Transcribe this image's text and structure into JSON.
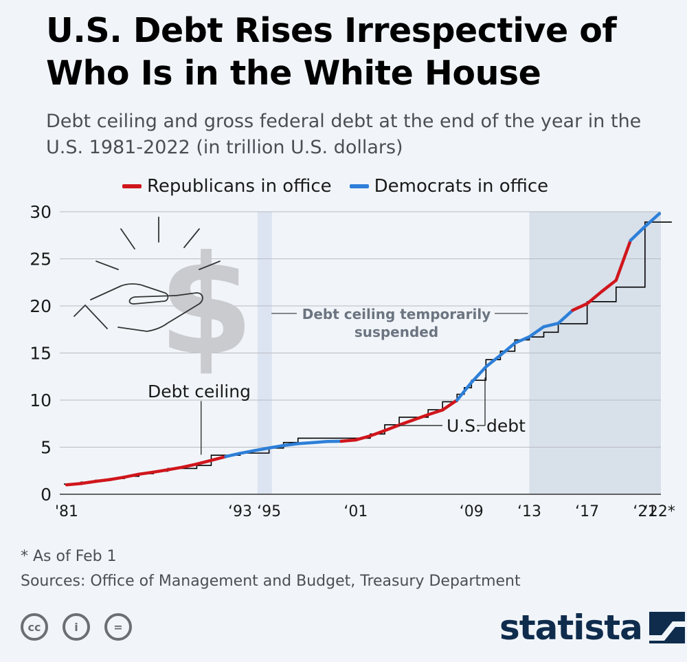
{
  "header": {
    "title": "U.S. Debt Rises Irrespective of Who Is in the White House",
    "subtitle": "Debt ceiling and gross federal debt at the end of the year in the U.S. 1981-2022 (in trillion U.S. dollars)"
  },
  "colors": {
    "republican": "#d0161c",
    "democrat": "#2d7fd8",
    "ceiling_line": "#000000",
    "shade_democrat": "#d8e0ea",
    "shade_suspension": "#dde4f1",
    "grid": "#b8bcc2",
    "brand": "#0f2c4d"
  },
  "legend": {
    "republican_label": "Republicans in office",
    "democrat_label": "Democrats in office"
  },
  "chart_data": {
    "type": "line",
    "xlim": [
      1981,
      2022.1
    ],
    "ylim": [
      0,
      30
    ],
    "y_ticks": [
      "0",
      "5",
      "10",
      "15",
      "20",
      "25",
      "30"
    ],
    "y_tick_values": [
      0,
      5,
      10,
      15,
      20,
      25,
      30
    ],
    "x_tick_labels": [
      {
        "year": 1981,
        "label": "'81"
      },
      {
        "year": 1993,
        "label": "‘93"
      },
      {
        "year": 1995,
        "label": "‘95"
      },
      {
        "year": 2001,
        "label": "‘01"
      },
      {
        "year": 2009,
        "label": "‘09"
      },
      {
        "year": 2013,
        "label": "‘13"
      },
      {
        "year": 2017,
        "label": "‘17"
      },
      {
        "year": 2021,
        "label": "‘21"
      },
      {
        "year": 2022,
        "label": "‘22*"
      }
    ],
    "grid": true,
    "legend_position": "top",
    "shaded_periods": [
      {
        "from": 1994.2,
        "to": 1995.2,
        "kind": "suspension"
      },
      {
        "from": 2013.0,
        "to": 2022.1,
        "kind": "suspension"
      }
    ],
    "series": [
      {
        "name": "U.S. debt",
        "x": [
          1981,
          1982,
          1983,
          1984,
          1985,
          1986,
          1987,
          1988,
          1989,
          1990,
          1991,
          1992,
          1993,
          1994,
          1995,
          1996,
          1997,
          1998,
          1999,
          2000,
          2001,
          2002,
          2003,
          2004,
          2005,
          2006,
          2007,
          2008,
          2009,
          2010,
          2011,
          2012,
          2013,
          2014,
          2015,
          2016,
          2017,
          2018,
          2019,
          2020,
          2021,
          2022
        ],
        "y": [
          1.0,
          1.14,
          1.37,
          1.56,
          1.82,
          2.13,
          2.35,
          2.6,
          2.87,
          3.21,
          3.6,
          4.0,
          4.35,
          4.64,
          4.92,
          5.18,
          5.37,
          5.48,
          5.6,
          5.63,
          5.77,
          6.2,
          6.76,
          7.35,
          7.9,
          8.45,
          8.95,
          9.99,
          11.88,
          13.53,
          14.76,
          16.05,
          16.72,
          17.79,
          18.15,
          19.54,
          20.24,
          21.52,
          22.72,
          26.95,
          28.43,
          29.8
        ],
        "party": [
          "R",
          "R",
          "R",
          "R",
          "R",
          "R",
          "R",
          "R",
          "R",
          "R",
          "R",
          "R",
          "D",
          "D",
          "D",
          "D",
          "D",
          "D",
          "D",
          "D",
          "R",
          "R",
          "R",
          "R",
          "R",
          "R",
          "R",
          "R",
          "D",
          "D",
          "D",
          "D",
          "D",
          "D",
          "D",
          "D",
          "R",
          "R",
          "R",
          "R",
          "D",
          "D"
        ]
      },
      {
        "name": "Debt ceiling",
        "x": [
          1981,
          1982,
          1983,
          1984,
          1985,
          1986,
          1987,
          1988,
          1990,
          1991,
          1993,
          1995,
          1996,
          1997,
          2001,
          2002,
          2003,
          2004,
          2006,
          2007,
          2008,
          2008.5,
          2009,
          2010,
          2011,
          2012,
          2013,
          2014,
          2015,
          2017,
          2018,
          2019,
          2021,
          2022
        ],
        "y": [
          1.08,
          1.29,
          1.49,
          1.67,
          1.91,
          2.18,
          2.45,
          2.74,
          3.06,
          4.15,
          4.37,
          4.9,
          5.5,
          5.95,
          5.95,
          6.4,
          7.38,
          8.18,
          8.97,
          9.82,
          10.62,
          11.32,
          12.1,
          14.29,
          15.19,
          16.39,
          16.7,
          17.2,
          18.11,
          20.45,
          20.45,
          21.99,
          28.9,
          28.9
        ]
      }
    ]
  },
  "annotations": {
    "suspension_label_line1": "Debt ceiling temporarily",
    "suspension_label_line2": "suspended",
    "ceiling_label": "Debt ceiling",
    "debt_label": "U.S. debt"
  },
  "footer": {
    "note": "* As of Feb 1",
    "sources": "Sources: Office of Management and Budget, Treasury Department",
    "brand": "statista",
    "dollar_symbol": "$",
    "cc_icons": [
      "cc-icon",
      "by-icon",
      "nd-icon"
    ],
    "cc_glyphs": [
      "cc",
      "i",
      "="
    ]
  }
}
